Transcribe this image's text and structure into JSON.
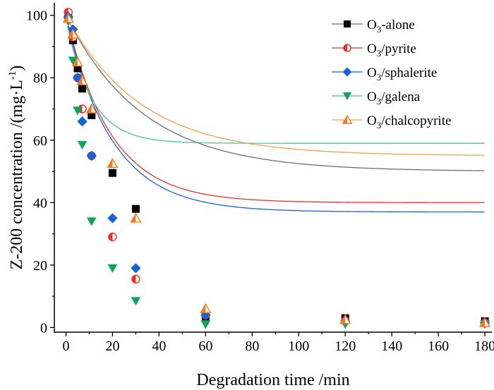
{
  "chart_data": {
    "type": "scatter",
    "title": "",
    "xlabel": "Degradation time /min",
    "ylabel_main": "Z-200 concentration /(mg·L",
    "ylabel_sup": "-1",
    "ylabel_close": ")",
    "xlim": [
      -5,
      183
    ],
    "ylim": [
      -1.5,
      104
    ],
    "xticks": [
      0,
      20,
      40,
      60,
      80,
      100,
      120,
      140,
      160,
      180
    ],
    "yticks": [
      0,
      20,
      40,
      60,
      80,
      100
    ],
    "legend_position": "top-right",
    "series": [
      {
        "name_main": "O",
        "name_sub": "3",
        "name_rest": "-alone",
        "color": "#000000",
        "line_color": "#6e6e6e",
        "marker": "square",
        "x": [
          1,
          3,
          5,
          7,
          11,
          20,
          30,
          60,
          120,
          180
        ],
        "y": [
          100,
          92,
          83,
          76.5,
          68,
          49.5,
          38,
          3.5,
          3,
          2
        ],
        "fit": [
          100,
          50,
          0.03
        ]
      },
      {
        "name_main": "O",
        "name_sub": "3",
        "name_rest": "/pyrite",
        "color": "#e8312a",
        "line_color": "#e8312a",
        "marker": "half-circle",
        "x": [
          1,
          3,
          5,
          7,
          11,
          20,
          30,
          60,
          120,
          180
        ],
        "y": [
          101,
          93,
          80,
          70,
          55,
          29,
          15.5,
          4,
          2,
          1.5
        ],
        "fit": [
          100,
          60,
          0.052
        ]
      },
      {
        "name_main": "O",
        "name_sub": "3",
        "name_rest": "/sphalerite",
        "color": "#1563d6",
        "line_color": "#1f5fd6",
        "marker": "diamond",
        "x": [
          1,
          3,
          5,
          7,
          11,
          20,
          30,
          60,
          120,
          180
        ],
        "y": [
          99.5,
          95.5,
          80,
          66,
          55,
          35,
          19,
          4,
          2,
          1.5
        ],
        "fit": [
          99,
          62,
          0.05
        ]
      },
      {
        "name_main": "O",
        "name_sub": "3",
        "name_rest": "/galena",
        "color": "#12a35a",
        "line_color": "#3fc7a0",
        "marker": "triangle-down",
        "x": [
          1,
          3,
          5,
          7,
          11,
          20,
          30,
          60,
          120,
          180
        ],
        "y": [
          98,
          85.5,
          69.5,
          58.5,
          34,
          19,
          8.5,
          1,
          1,
          1
        ],
        "fit": [
          99,
          40,
          0.093
        ]
      },
      {
        "name_main": "O",
        "name_sub": "3",
        "name_rest": "/chalcopyrite",
        "color": "#f47920",
        "line_color": "#f5a04a",
        "marker": "half-triangle-up",
        "x": [
          1,
          3,
          5,
          7,
          11,
          20,
          30,
          60,
          120,
          180
        ],
        "y": [
          99,
          94,
          85,
          79,
          70,
          52.5,
          35,
          6,
          2.5,
          1.5
        ],
        "fit": [
          100,
          45,
          0.031
        ]
      }
    ]
  }
}
